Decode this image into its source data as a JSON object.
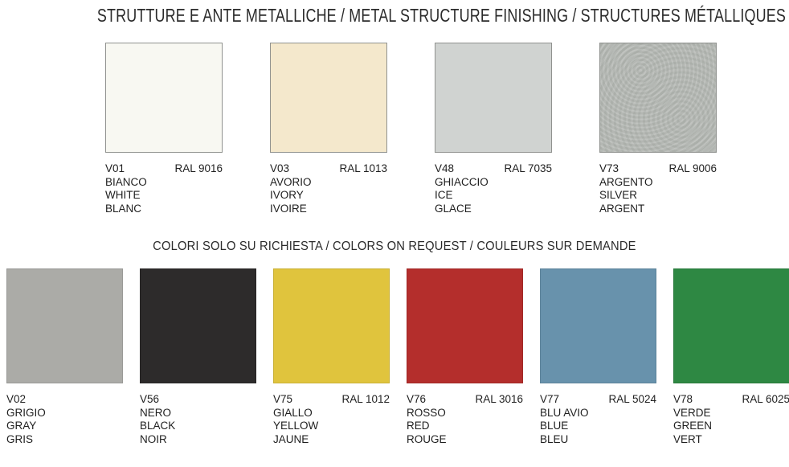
{
  "page": {
    "title_main": "STRUTTURE E ANTE METALLICHE / METAL STRUCTURE FINISHING / STRUCTURES MÉTALLIQUES",
    "title_request": "COLORI SOLO SU RICHIESTA / COLORS ON REQUEST / COULEURS SUR DEMANDE"
  },
  "standard_colors": [
    {
      "code": "V01",
      "ral": "RAL 9016",
      "names": [
        "BIANCO",
        "WHITE",
        "BLANC"
      ],
      "hex": "#F8F8F2",
      "texture": "flat"
    },
    {
      "code": "V03",
      "ral": "RAL 1013",
      "names": [
        "AVORIO",
        "IVORY",
        "IVOIRE"
      ],
      "hex": "#F4E8CC",
      "texture": "flat"
    },
    {
      "code": "V48",
      "ral": "RAL 7035",
      "names": [
        "GHIACCIO",
        "ICE",
        "GLACE"
      ],
      "hex": "#D0D3D1",
      "texture": "flat"
    },
    {
      "code": "V73",
      "ral": "RAL 9006",
      "names": [
        "ARGENTO",
        "SILVER",
        "ARGENT"
      ],
      "hex": "#B7BBB6",
      "texture": "metallic"
    }
  ],
  "request_colors": [
    {
      "code": "V02",
      "ral": "",
      "names": [
        "GRIGIO",
        "GRAY",
        "GRIS"
      ],
      "hex": "#ABABA7",
      "texture": "flat"
    },
    {
      "code": "V56",
      "ral": "",
      "names": [
        "NERO",
        "BLACK",
        "NOIR"
      ],
      "hex": "#2D2B2B",
      "texture": "flat"
    },
    {
      "code": "V75",
      "ral": "RAL 1012",
      "names": [
        "GIALLO",
        "YELLOW",
        "JAUNE"
      ],
      "hex": "#E0C43D",
      "texture": "flat"
    },
    {
      "code": "V76",
      "ral": "RAL 3016",
      "names": [
        "ROSSO",
        "RED",
        "ROUGE"
      ],
      "hex": "#B42E2C",
      "texture": "flat"
    },
    {
      "code": "V77",
      "ral": "RAL 5024",
      "names": [
        "BLU AVIO",
        "BLUE",
        "BLEU"
      ],
      "hex": "#6892AC",
      "texture": "flat"
    },
    {
      "code": "V78",
      "ral": "RAL 6025",
      "names": [
        "VERDE",
        "GREEN",
        "VERT"
      ],
      "hex": "#2E8843",
      "texture": "flat"
    }
  ]
}
